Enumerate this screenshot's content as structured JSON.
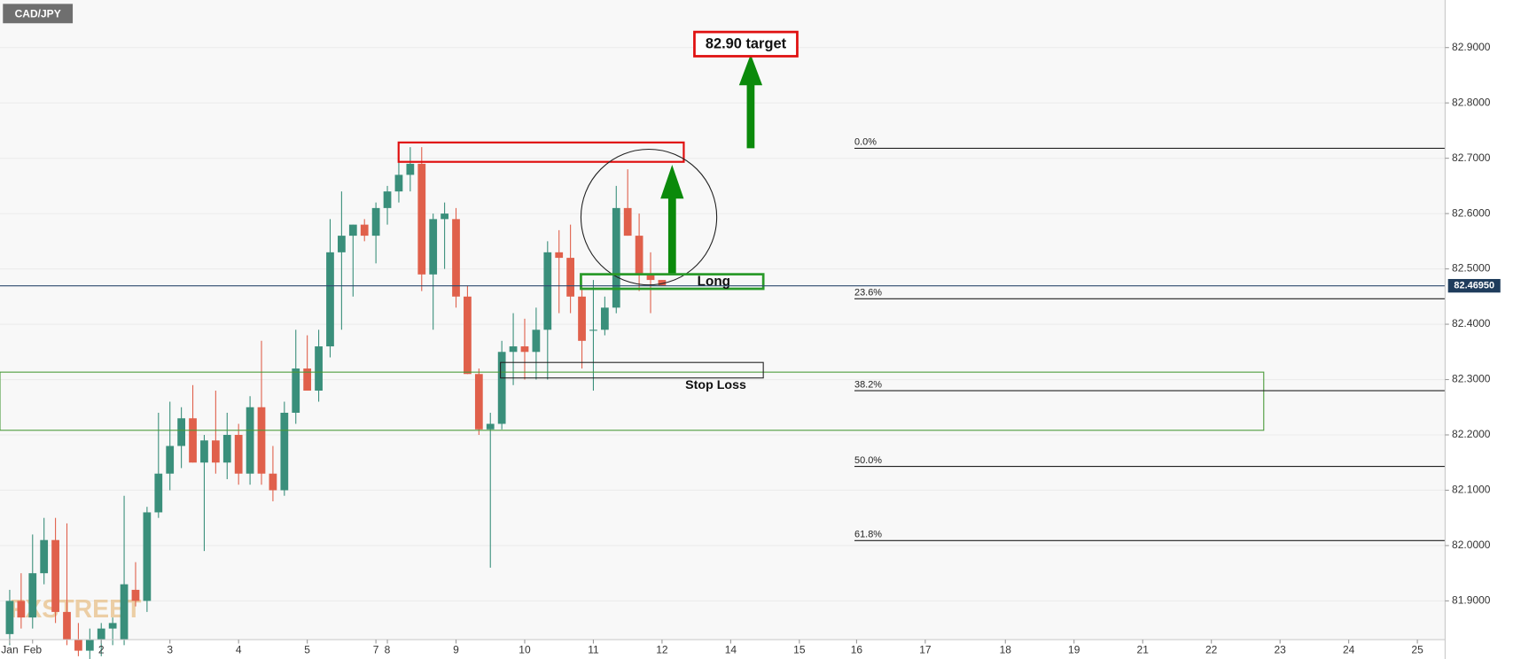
{
  "chart_data": {
    "type": "candlestick",
    "title": "CAD/JPY",
    "watermark": "FXSTREET",
    "up_color": "#3a8f7b",
    "down_color": "#e0604b",
    "grid": true,
    "ylim": [
      81.83,
      82.986
    ],
    "yticks": [
      {
        "value": 81.9,
        "label": "81.9000"
      },
      {
        "value": 82.0,
        "label": "82.0000"
      },
      {
        "value": 82.1,
        "label": "82.1000"
      },
      {
        "value": 82.2,
        "label": "82.2000"
      },
      {
        "value": 82.3,
        "label": "82.3000"
      },
      {
        "value": 82.4,
        "label": "82.4000"
      },
      {
        "value": 82.5,
        "label": "82.5000"
      },
      {
        "value": 82.6,
        "label": "82.6000"
      },
      {
        "value": 82.7,
        "label": "82.7000"
      },
      {
        "value": 82.8,
        "label": "82.8000"
      },
      {
        "value": 82.9,
        "label": "82.9000"
      }
    ],
    "categories": [
      "Jan",
      null,
      "Feb",
      null,
      null,
      null,
      null,
      null,
      "2",
      null,
      null,
      null,
      null,
      null,
      "3",
      null,
      null,
      null,
      null,
      null,
      "4",
      null,
      null,
      null,
      null,
      null,
      "5",
      null,
      null,
      null,
      null,
      null,
      "7",
      "8",
      null,
      null,
      null,
      null,
      null,
      "9",
      null,
      null,
      null,
      null,
      null,
      "10",
      null,
      null,
      null,
      null,
      null,
      "11",
      null,
      null,
      null,
      null,
      null,
      "12",
      null,
      null,
      null,
      null,
      null,
      "14",
      null,
      null,
      null,
      null,
      null,
      "15",
      null,
      null,
      null,
      null,
      "16",
      null,
      null,
      null,
      null,
      null,
      "17",
      null,
      null,
      null,
      null,
      null,
      null,
      "18",
      null,
      null,
      null,
      null,
      null,
      "19",
      null,
      null,
      null,
      null,
      null,
      "21",
      null,
      null,
      null,
      null,
      null,
      "22",
      null,
      null,
      null,
      null,
      null,
      "23",
      null,
      null,
      null,
      null,
      null,
      "24",
      null,
      null,
      null,
      null,
      null,
      "25",
      null,
      null
    ],
    "open": [
      81.84,
      81.9,
      81.87,
      81.95,
      82.01,
      81.88,
      81.83,
      81.81,
      81.83,
      81.85,
      81.83,
      81.92,
      81.9,
      82.06,
      82.13,
      82.18,
      82.23,
      82.15,
      82.19,
      82.15,
      82.2,
      82.13,
      82.25,
      82.13,
      82.1,
      82.24,
      82.32,
      82.28,
      82.36,
      82.53,
      82.56,
      82.58,
      82.56,
      82.61,
      82.64,
      82.67,
      82.69,
      82.49,
      82.59,
      82.59,
      82.45,
      82.31,
      82.21,
      82.22,
      82.35,
      82.36,
      82.35,
      82.39,
      82.53,
      82.52,
      82.45,
      82.39,
      82.39,
      82.43,
      82.61,
      82.56,
      82.49,
      82.48,
      null,
      null,
      null,
      null,
      null,
      null,
      null,
      null,
      null,
      null,
      null,
      null,
      null,
      null,
      null,
      null,
      null,
      null,
      null,
      null,
      null,
      null,
      null,
      null,
      null,
      null,
      null,
      null,
      null,
      null,
      null,
      null,
      null,
      null,
      null,
      null,
      null,
      null,
      null,
      null,
      null,
      null,
      null,
      null,
      null,
      null,
      null,
      null,
      null,
      null,
      null,
      null,
      null,
      null,
      null,
      null,
      null,
      null,
      null,
      null,
      null,
      null,
      null,
      null,
      null,
      null,
      null,
      null
    ],
    "high": [
      81.92,
      81.95,
      82.02,
      82.05,
      82.05,
      82.04,
      81.86,
      81.85,
      81.86,
      81.87,
      82.09,
      81.97,
      82.07,
      82.24,
      82.26,
      82.25,
      82.29,
      82.2,
      82.28,
      82.24,
      82.22,
      82.27,
      82.37,
      82.18,
      82.26,
      82.39,
      82.38,
      82.39,
      82.59,
      82.64,
      82.58,
      82.59,
      82.62,
      82.65,
      82.7,
      82.72,
      82.72,
      82.6,
      82.62,
      82.61,
      82.47,
      82.32,
      82.24,
      82.37,
      82.42,
      82.41,
      82.43,
      82.55,
      82.57,
      82.58,
      82.47,
      82.48,
      82.45,
      82.65,
      82.68,
      82.6,
      82.53,
      82.48,
      null,
      null,
      null,
      null,
      null,
      null,
      null,
      null,
      null,
      null,
      null,
      null,
      null,
      null,
      null,
      null,
      null,
      null,
      null,
      null,
      null,
      null,
      null,
      null,
      null,
      null,
      null,
      null,
      null,
      null,
      null,
      null,
      null,
      null,
      null,
      null,
      null,
      null,
      null,
      null,
      null,
      null,
      null,
      null,
      null,
      null,
      null,
      null,
      null,
      null,
      null,
      null,
      null,
      null,
      null,
      null,
      null,
      null,
      null,
      null,
      null,
      null,
      null,
      null,
      null,
      null,
      null,
      null
    ],
    "low": [
      81.82,
      81.85,
      81.85,
      81.93,
      81.86,
      81.82,
      81.8,
      81.78,
      81.8,
      81.82,
      81.82,
      81.89,
      81.88,
      82.05,
      82.1,
      82.14,
      82.15,
      81.99,
      82.13,
      82.12,
      82.11,
      82.11,
      82.11,
      82.08,
      82.09,
      82.22,
      82.28,
      82.26,
      82.34,
      82.39,
      82.45,
      82.55,
      82.51,
      82.58,
      82.62,
      82.64,
      82.46,
      82.39,
      82.5,
      82.43,
      82.31,
      82.2,
      81.96,
      82.21,
      82.29,
      82.3,
      82.3,
      82.3,
      82.42,
      82.42,
      82.32,
      82.28,
      82.38,
      82.42,
      82.56,
      82.46,
      82.42,
      82.47,
      null,
      null,
      null,
      null,
      null,
      null,
      null,
      null,
      null,
      null,
      null,
      null,
      null,
      null,
      null,
      null,
      null,
      null,
      null,
      null,
      null,
      null,
      null,
      null,
      null,
      null,
      null,
      null,
      null,
      null,
      null,
      null,
      null,
      null,
      null,
      null,
      null,
      null,
      null,
      null,
      null,
      null,
      null,
      null,
      null,
      null,
      null,
      null,
      null,
      null,
      null,
      null,
      null,
      null,
      null,
      null,
      null,
      null,
      null,
      null,
      null,
      null,
      null,
      null,
      null,
      null,
      null,
      null
    ],
    "close": [
      81.9,
      81.87,
      81.95,
      82.01,
      81.88,
      81.83,
      81.81,
      81.83,
      81.85,
      81.86,
      81.93,
      81.9,
      82.06,
      82.13,
      82.18,
      82.23,
      82.15,
      82.19,
      82.15,
      82.2,
      82.13,
      82.25,
      82.13,
      82.1,
      82.24,
      82.32,
      82.28,
      82.36,
      82.53,
      82.56,
      82.58,
      82.56,
      82.61,
      82.64,
      82.67,
      82.69,
      82.49,
      82.59,
      82.6,
      82.45,
      82.31,
      82.21,
      82.22,
      82.35,
      82.36,
      82.35,
      82.39,
      82.53,
      82.52,
      82.45,
      82.37,
      82.39,
      82.43,
      82.61,
      82.56,
      82.49,
      82.48,
      82.47,
      null,
      null,
      null,
      null,
      null,
      null,
      null,
      null,
      null,
      null,
      null,
      null,
      null,
      null,
      null,
      null,
      null,
      null,
      null,
      null,
      null,
      null,
      null,
      null,
      null,
      null,
      null,
      null,
      null,
      null,
      null,
      null,
      null,
      null,
      null,
      null,
      null,
      null,
      null,
      null,
      null,
      null,
      null,
      null,
      null,
      null,
      null,
      null,
      null,
      null,
      null,
      null,
      null,
      null,
      null,
      null,
      null,
      null,
      null,
      null,
      null,
      null,
      null,
      null,
      null,
      null,
      null,
      null
    ],
    "last_price": {
      "value": 82.4695,
      "label": "82.46950"
    },
    "fib_levels": [
      {
        "label": "0.0%",
        "value": 82.718
      },
      {
        "label": "23.6%",
        "value": 82.446
      },
      {
        "label": "38.2%",
        "value": 82.28
      },
      {
        "label": "50.0%",
        "value": 82.143
      },
      {
        "label": "61.8%",
        "value": 82.009
      }
    ],
    "annotations": {
      "target": "82.90 target",
      "long": "Long",
      "stop_loss": "Stop Loss"
    }
  }
}
